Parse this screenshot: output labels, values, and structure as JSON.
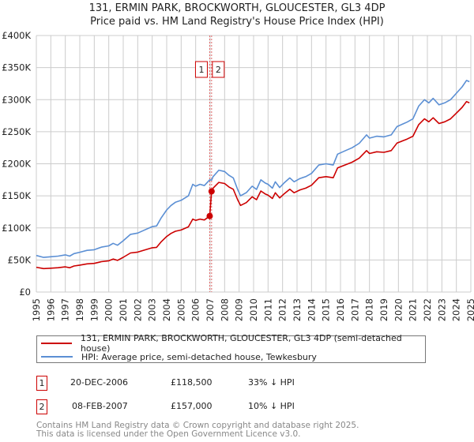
{
  "chart_data": {
    "type": "line",
    "title": "131, ERMIN PARK, BROCKWORTH, GLOUCESTER, GL3 4DP",
    "subtitle": "Price paid vs. HM Land Registry's House Price Index (HPI)",
    "xlim": [
      1995,
      2025
    ],
    "ylim": [
      0,
      400000
    ],
    "grid": true,
    "x_ticks": [
      "1995",
      "1996",
      "1997",
      "1998",
      "1999",
      "2000",
      "2001",
      "2002",
      "2003",
      "2004",
      "2005",
      "2006",
      "2007",
      "2008",
      "2009",
      "2010",
      "2011",
      "2012",
      "2013",
      "2014",
      "2015",
      "2016",
      "2017",
      "2018",
      "2019",
      "2020",
      "2021",
      "2022",
      "2023",
      "2024",
      "2025"
    ],
    "y_ticks": [
      {
        "value": 0,
        "label": "£0"
      },
      {
        "value": 50000,
        "label": "£50K"
      },
      {
        "value": 100000,
        "label": "£100K"
      },
      {
        "value": 150000,
        "label": "£150K"
      },
      {
        "value": 200000,
        "label": "£200K"
      },
      {
        "value": 250000,
        "label": "£250K"
      },
      {
        "value": 300000,
        "label": "£300K"
      },
      {
        "value": 350000,
        "label": "£350K"
      },
      {
        "value": 400000,
        "label": "£400K"
      }
    ],
    "x": [
      1995.0,
      1995.5,
      1996,
      1996.5,
      1997,
      1997.3,
      1997.6,
      1998,
      1998.5,
      1999,
      1999.5,
      2000,
      2000.3,
      2000.6,
      2001,
      2001.5,
      2002,
      2002.5,
      2003,
      2003.3,
      2003.6,
      2004,
      2004.3,
      2004.6,
      2005,
      2005.5,
      2005.8,
      2006,
      2006.3,
      2006.6,
      2006.97,
      2007.1,
      2007.2,
      2007.6,
      2008,
      2008.3,
      2008.6,
      2008.9,
      2009.1,
      2009.5,
      2009.9,
      2010.2,
      2010.5,
      2010.8,
      2011,
      2011.3,
      2011.5,
      2011.8,
      2012.1,
      2012.5,
      2012.8,
      2013.2,
      2013.6,
      2014,
      2014.5,
      2015,
      2015.5,
      2015.8,
      2016.3,
      2016.8,
      2017.3,
      2017.8,
      2018,
      2018.5,
      2019,
      2019.5,
      2019.9,
      2020.3,
      2020.6,
      2021,
      2021.4,
      2021.8,
      2022.1,
      2022.4,
      2022.8,
      2023.2,
      2023.6,
      2024.0,
      2024.4,
      2024.7,
      2024.9
    ],
    "series": [
      {
        "name": "131, ERMIN PARK, BROCKWORTH, GLOUCESTER, GL3 4DP (semi-detached house)",
        "color": "#cc0000",
        "values": [
          38600,
          36600,
          37200,
          37900,
          39300,
          37900,
          40600,
          42000,
          44000,
          44700,
          47400,
          48700,
          51500,
          49400,
          54200,
          60900,
          62300,
          65700,
          69100,
          69700,
          77900,
          86700,
          91400,
          94800,
          96800,
          101600,
          113700,
          111700,
          113700,
          112400,
          118500,
          157000,
          162000,
          171000,
          169200,
          163800,
          160200,
          144000,
          135000,
          139500,
          148500,
          144000,
          157500,
          153000,
          151200,
          145800,
          154800,
          146700,
          153000,
          160200,
          154800,
          159300,
          162000,
          166500,
          178200,
          180000,
          178200,
          193500,
          198000,
          202500,
          208800,
          220500,
          216000,
          218700,
          217800,
          220500,
          232200,
          235800,
          238500,
          243000,
          261000,
          270000,
          265500,
          271800,
          262800,
          265500,
          270000,
          279000,
          288000,
          297000,
          295200
        ]
      },
      {
        "name": "HPI: Average price, semi-detached house, Tewkesbury",
        "color": "#5b8fd4",
        "values": [
          57000,
          54000,
          55000,
          56000,
          58000,
          56000,
          60000,
          62000,
          65000,
          66000,
          70000,
          72000,
          76000,
          73000,
          80000,
          90000,
          92000,
          97000,
          102000,
          103000,
          115000,
          128000,
          135000,
          140000,
          143000,
          150000,
          168000,
          165000,
          168000,
          166000,
          175000,
          174400,
          180000,
          190000,
          188000,
          182000,
          178000,
          160000,
          150000,
          155000,
          165000,
          160000,
          175000,
          170000,
          168000,
          162000,
          172000,
          163000,
          170000,
          178000,
          172000,
          177000,
          180000,
          185000,
          198000,
          200000,
          198000,
          215000,
          220000,
          225000,
          232000,
          245000,
          240000,
          243000,
          242000,
          245000,
          258000,
          262000,
          265000,
          270000,
          290000,
          300000,
          295000,
          302000,
          292000,
          295000,
          300000,
          310000,
          320000,
          330000,
          328000
        ]
      }
    ],
    "sales": [
      {
        "label": "1",
        "x": 2006.97,
        "price": 118500
      },
      {
        "label": "2",
        "x": 2007.1,
        "price": 157000
      }
    ]
  },
  "table": [
    {
      "num": "1",
      "date": "20-DEC-2006",
      "price": "£118,500",
      "hpi": "33% ↓ HPI"
    },
    {
      "num": "2",
      "date": "08-FEB-2007",
      "price": "£157,000",
      "hpi": "10% ↓ HPI"
    }
  ],
  "footer": {
    "line1": "Contains HM Land Registry data © Crown copyright and database right 2025.",
    "line2": "This data is licensed under the Open Government Licence v3.0."
  }
}
